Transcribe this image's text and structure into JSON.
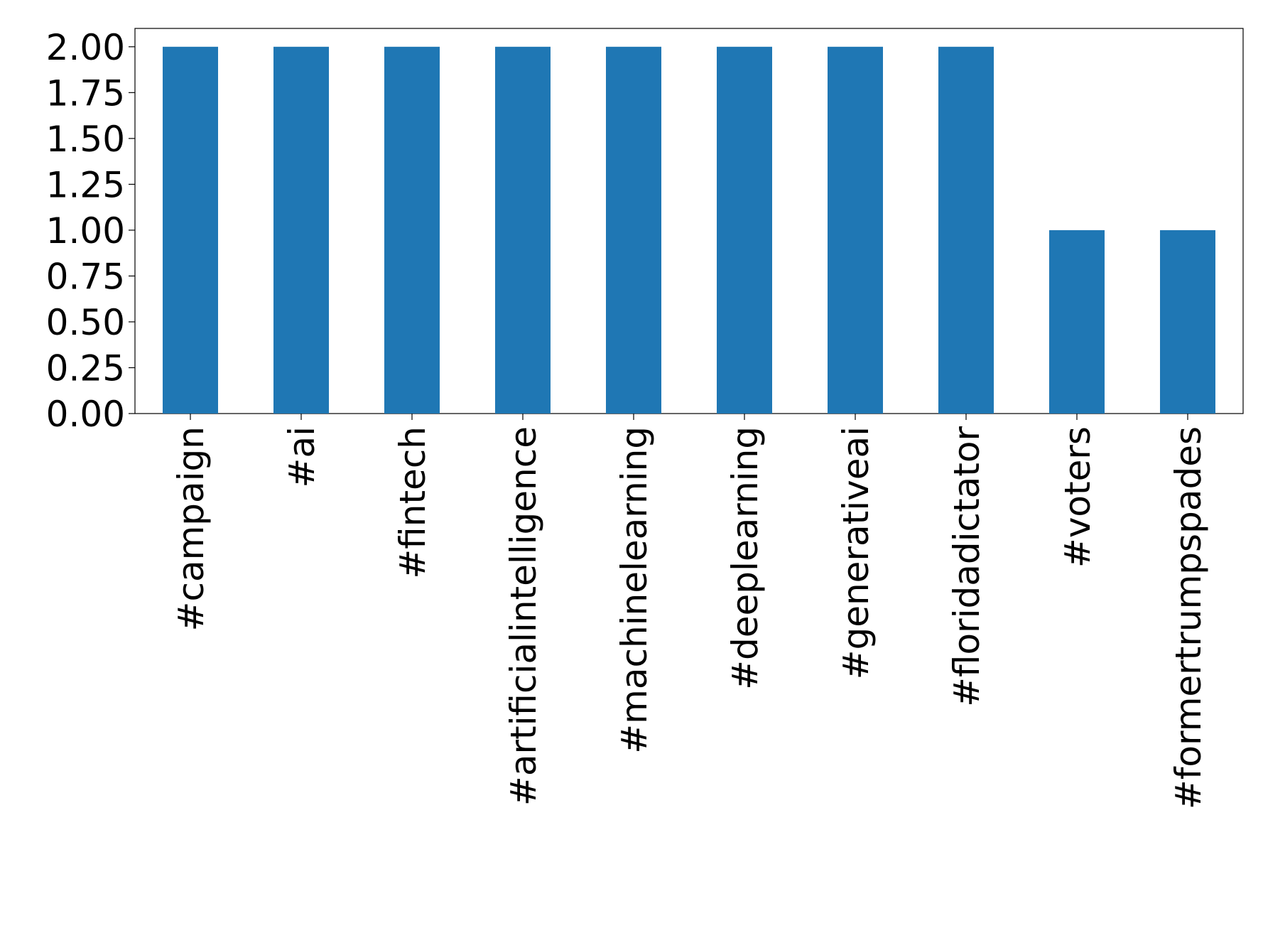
{
  "chart_data": {
    "type": "bar",
    "title": "",
    "xlabel": "",
    "ylabel": "",
    "categories": [
      "#campaign",
      "#ai",
      "#fintech",
      "#artificialintelligence",
      "#machinelearning",
      "#deeplearning",
      "#generativeai",
      "#floridadictator",
      "#voters",
      "#formertrumpspades"
    ],
    "values": [
      2,
      2,
      2,
      2,
      2,
      2,
      2,
      2,
      1,
      1
    ],
    "ylim": [
      0,
      2.1
    ],
    "yticks": [
      "0.00",
      "0.25",
      "0.50",
      "0.75",
      "1.00",
      "1.25",
      "1.50",
      "1.75",
      "2.00"
    ],
    "bar_color": "#1f77b4",
    "grid": false,
    "legend": "none"
  }
}
